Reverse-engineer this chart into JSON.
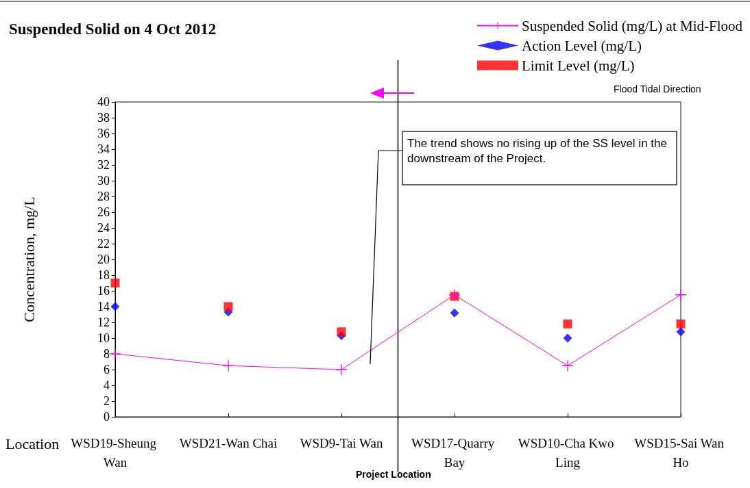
{
  "chart_data": {
    "type": "line",
    "title": "Suspended Solid on 4 Oct 2012",
    "xlabel": "Location",
    "ylabel": "Concentration, mg/L",
    "categories": [
      "WSD19-Sheung Wan",
      "WSD21-Wan Chai",
      "WSD9-Tai Wan",
      "WSD17-Quarry Bay",
      "WSD10-Cha Kwo Ling",
      "WSD15-Sai Wan Ho"
    ],
    "series": [
      {
        "name": "Suspended Solid (mg/L) at Mid-Flood",
        "marker": "cross",
        "color": "#ff00ff",
        "values": [
          8,
          6.5,
          6,
          15.5,
          6.5,
          15.5
        ]
      },
      {
        "name": "Action Level (mg/L)",
        "type": "scatter",
        "marker": "diamond",
        "color": "#0000ff",
        "values": [
          14,
          13.3,
          10.3,
          13.2,
          10,
          10.8
        ]
      },
      {
        "name": "Limit Level (mg/L)",
        "type": "scatter",
        "marker": "square",
        "color": "#ff0000",
        "values": [
          17,
          14,
          10.8,
          15.3,
          11.8,
          11.8
        ]
      }
    ],
    "ylim": [
      0,
      40
    ],
    "yticks": [
      0,
      2,
      4,
      6,
      8,
      10,
      12,
      14,
      16,
      18,
      20,
      22,
      24,
      26,
      28,
      30,
      32,
      34,
      36,
      38,
      40
    ],
    "grid": false,
    "legend": "top right",
    "annotations": [
      "Flood Tidal Direction",
      "The trend shows no rising up of the SS level in the downstream of the Project.",
      "Project Location"
    ]
  }
}
